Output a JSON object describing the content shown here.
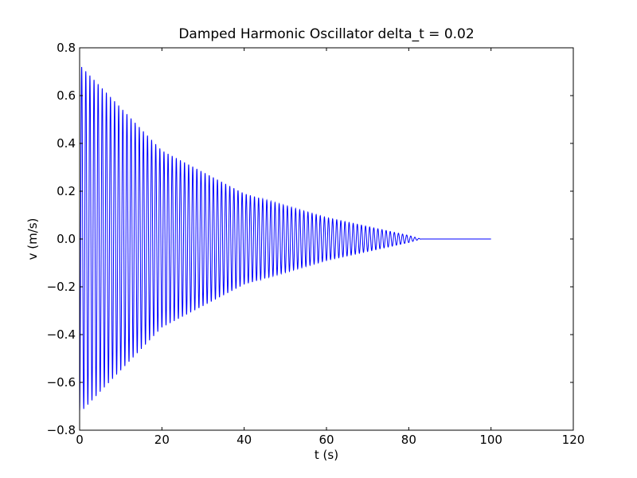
{
  "chart_data": {
    "type": "line",
    "title": "Damped Harmonic Oscillator delta_t = 0.02",
    "xlabel": "t (s)",
    "ylabel": "v (m/s)",
    "xlim": [
      0,
      120
    ],
    "ylim": [
      -0.8,
      0.8
    ],
    "xticks": [
      0,
      20,
      40,
      60,
      80,
      100,
      120
    ],
    "xtick_labels": [
      "0",
      "20",
      "40",
      "60",
      "80",
      "100",
      "120"
    ],
    "yticks": [
      -0.8,
      -0.6,
      -0.4,
      -0.2,
      0.0,
      0.2,
      0.4,
      0.6,
      0.8
    ],
    "ytick_labels": [
      "−0.8",
      "−0.6",
      "−0.4",
      "−0.2",
      "0.0",
      "0.2",
      "0.4",
      "0.6",
      "0.8"
    ],
    "grid": false,
    "series": [
      {
        "color": "#0000ff",
        "t_range": [
          0,
          100
        ],
        "envelope_upper": [
          {
            "t": 0.5,
            "v": 0.72
          },
          {
            "t": 20,
            "v": 0.37
          },
          {
            "t": 40,
            "v": 0.19
          },
          {
            "t": 60,
            "v": 0.09
          },
          {
            "t": 80,
            "v": 0.015
          },
          {
            "t": 83,
            "v": 0.0
          },
          {
            "t": 100,
            "v": 0.0
          }
        ],
        "period": 1.0
      }
    ]
  }
}
